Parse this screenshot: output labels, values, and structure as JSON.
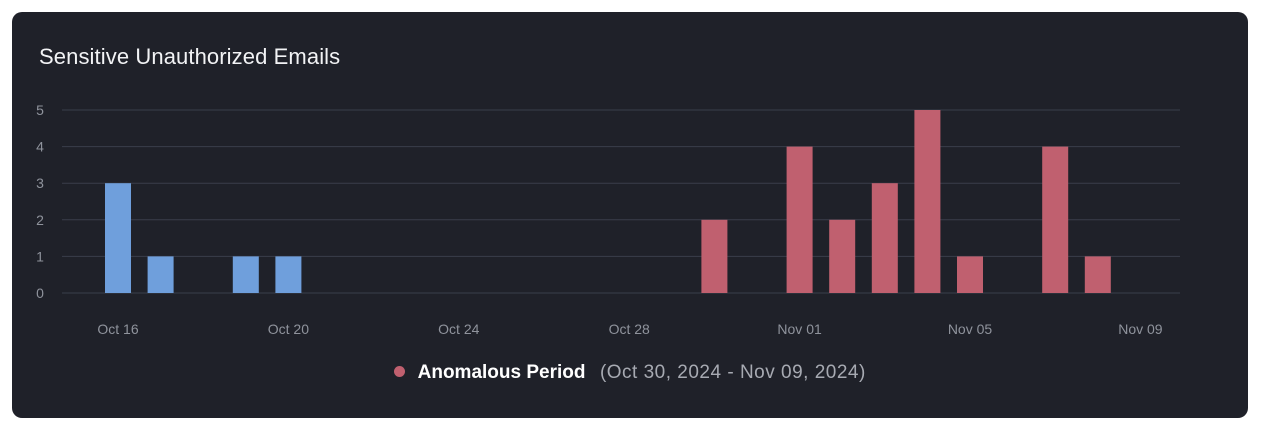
{
  "card": {
    "title": "Sensitive Unauthorized Emails"
  },
  "colors": {
    "background": "#1f2129",
    "normal_bar": "#6f9fdc",
    "anomalous_bar": "#c0606f",
    "gridline": "#3a3e4b",
    "tick_text": "#8f939c"
  },
  "legend": {
    "label": "Anomalous Period",
    "range": "(Oct 30, 2024 - Nov 09, 2024)"
  },
  "chart_data": {
    "type": "bar",
    "title": "Sensitive Unauthorized Emails",
    "xlabel": "",
    "ylabel": "",
    "x_axis_kind": "date",
    "xlim": [
      "2024-10-16",
      "2024-11-09"
    ],
    "ylim": [
      0,
      5
    ],
    "yticks": [
      0,
      1,
      2,
      3,
      4,
      5
    ],
    "xticks": [
      {
        "date": "2024-10-16",
        "label": "Oct 16"
      },
      {
        "date": "2024-10-20",
        "label": "Oct 20"
      },
      {
        "date": "2024-10-24",
        "label": "Oct 24"
      },
      {
        "date": "2024-10-28",
        "label": "Oct 28"
      },
      {
        "date": "2024-11-01",
        "label": "Nov 01"
      },
      {
        "date": "2024-11-05",
        "label": "Nov 05"
      },
      {
        "date": "2024-11-09",
        "label": "Nov 09"
      }
    ],
    "grid": true,
    "legend_position": "bottom-center",
    "series": [
      {
        "points": [
          {
            "date": "2024-10-16",
            "value": 3
          },
          {
            "date": "2024-10-17",
            "value": 1
          },
          {
            "date": "2024-10-19",
            "value": 1
          },
          {
            "date": "2024-10-20",
            "value": 1
          }
        ]
      },
      {
        "name": "Anomalous Period",
        "points": [
          {
            "date": "2024-10-30",
            "value": 2
          },
          {
            "date": "2024-11-01",
            "value": 4
          },
          {
            "date": "2024-11-02",
            "value": 2
          },
          {
            "date": "2024-11-03",
            "value": 3
          },
          {
            "date": "2024-11-04",
            "value": 5
          },
          {
            "date": "2024-11-05",
            "value": 1
          },
          {
            "date": "2024-11-07",
            "value": 4
          },
          {
            "date": "2024-11-08",
            "value": 1
          }
        ]
      }
    ]
  }
}
